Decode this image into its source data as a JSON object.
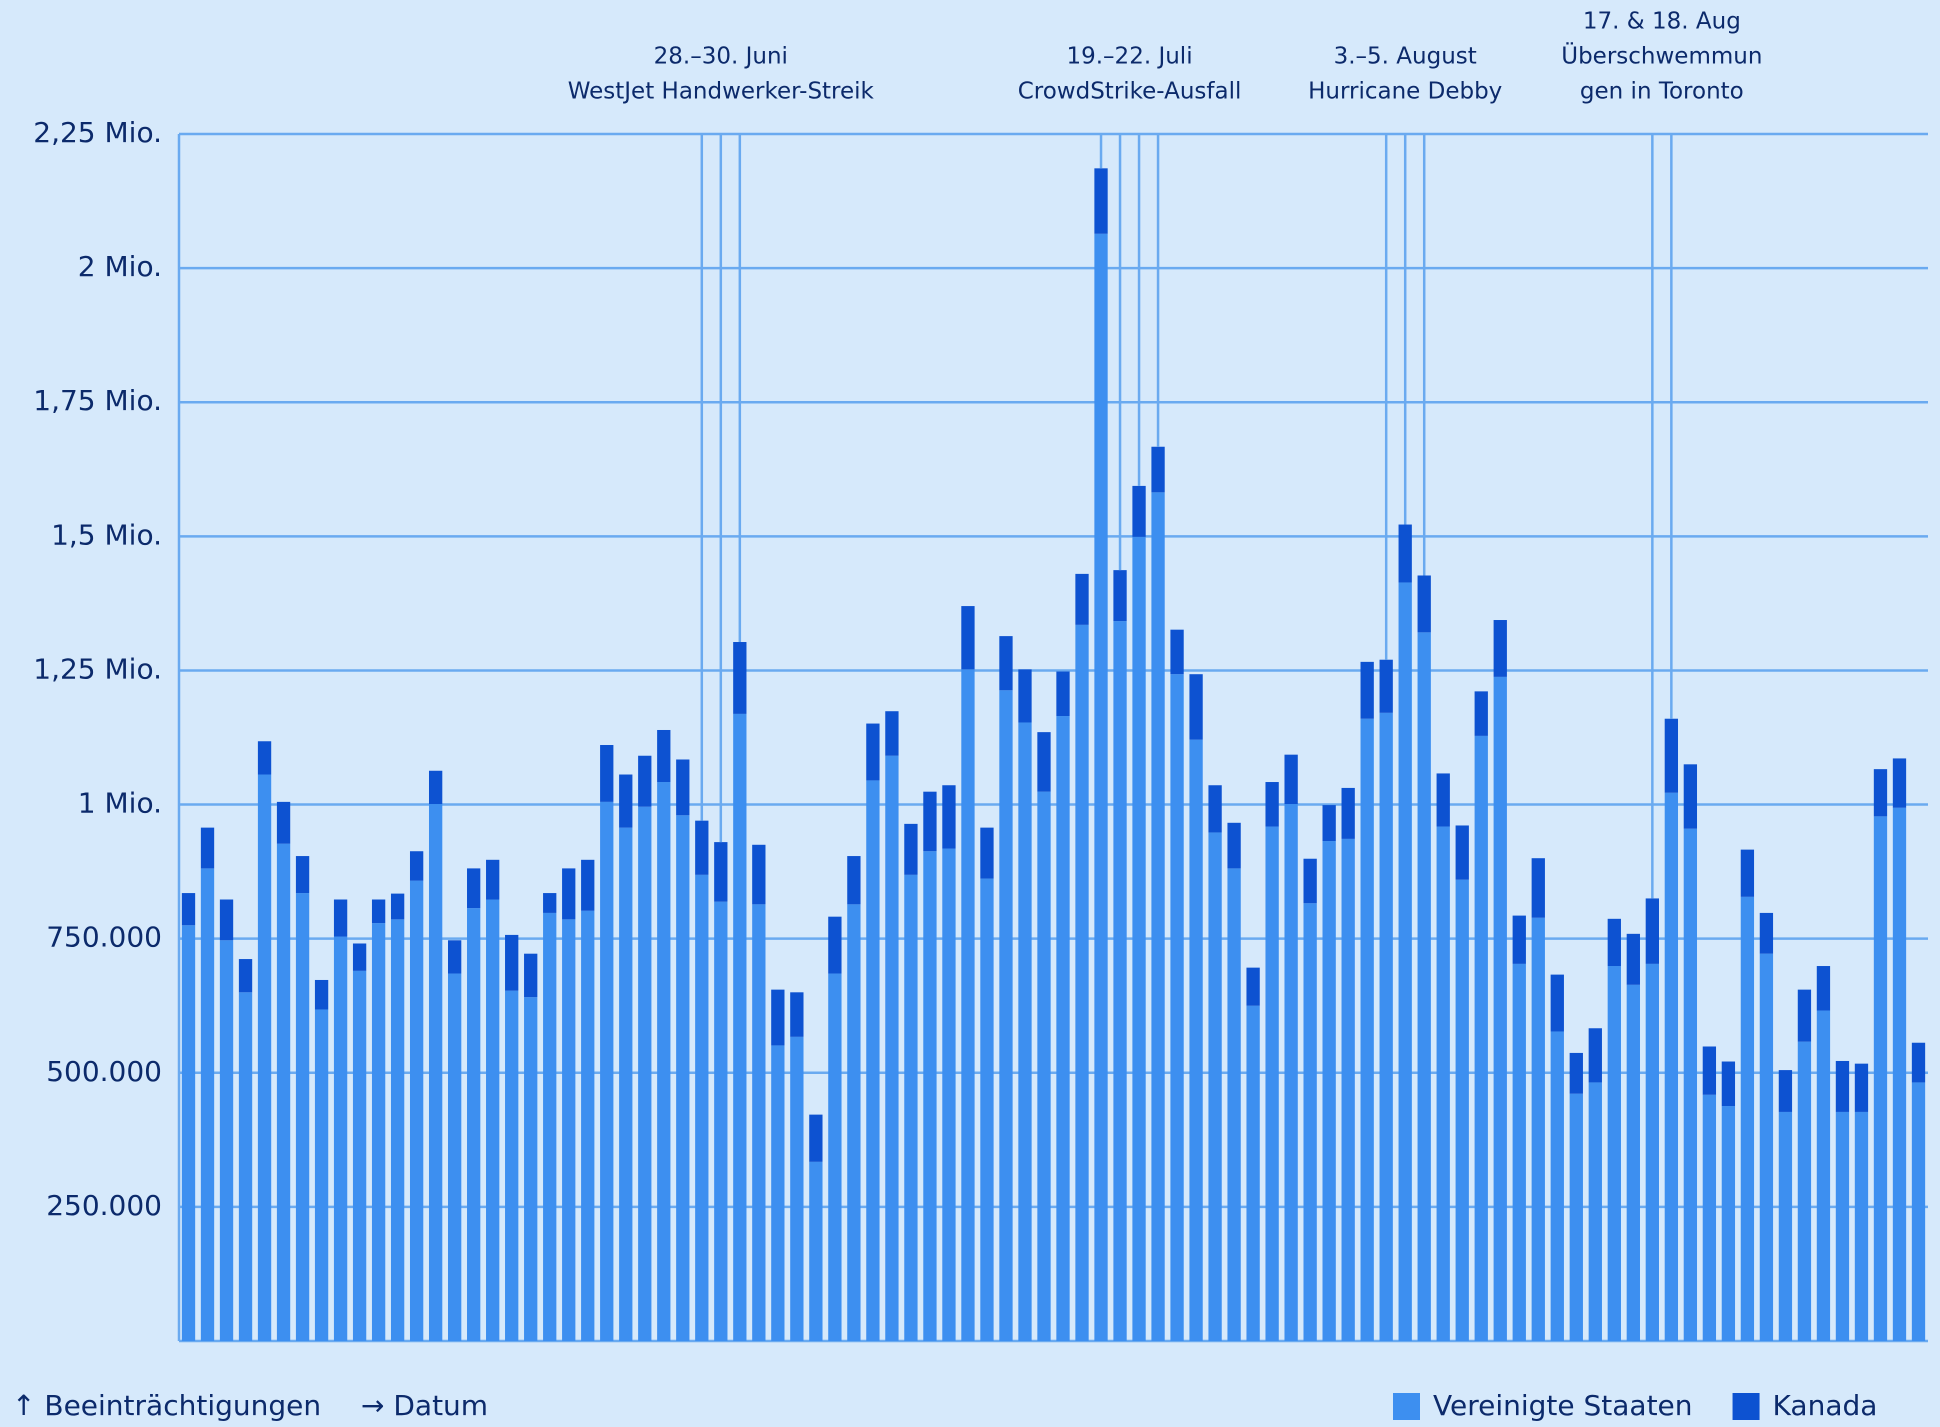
{
  "chart_data": {
    "type": "stacked_bar",
    "x_label": "→ Datum",
    "y_label": "↑ Beeinträchtigungen",
    "annotations": [
      {
        "lines": [
          "28.–30. Juni",
          "WestJet Handwerker-Streik"
        ]
      },
      {
        "lines": [
          "19.–22. Juli",
          "CrowdStrike-Ausfall"
        ]
      },
      {
        "lines": [
          "3.–5. August",
          "Hurricane Debby"
        ]
      },
      {
        "lines": [
          "17. & 18. Aug",
          "Überschwemmun",
          "gen in Toronto"
        ]
      }
    ],
    "categories": [
      null,
      null,
      null,
      null,
      null,
      null,
      null,
      null,
      null,
      null,
      null,
      null,
      null,
      null,
      null,
      null,
      null,
      null,
      null,
      null,
      null,
      null,
      null,
      null,
      null,
      null,
      null,
      null,
      null,
      null,
      null,
      null,
      null,
      null,
      null,
      null,
      null,
      null,
      null,
      null,
      null,
      null,
      null,
      null,
      null,
      null,
      null,
      null,
      null,
      null,
      null,
      null,
      null,
      null,
      null,
      null,
      null,
      null,
      null,
      null,
      null,
      null,
      null,
      null,
      null,
      null,
      null,
      null,
      null,
      null,
      null,
      null,
      null,
      null,
      null,
      null,
      null,
      null,
      null,
      null,
      null,
      null,
      null,
      null,
      null,
      null,
      null,
      null,
      null,
      null,
      null,
      null
    ],
    "series": [
      {
        "name": "Vereinigte Staaten",
        "color": "#3d8ff0",
        "values": [
          775000,
          881000,
          747000,
          650000,
          1056000,
          927000,
          835000,
          618000,
          754000,
          690000,
          779000,
          786000,
          858000,
          1001000,
          685000,
          807000,
          823000,
          653000,
          641000,
          798000,
          786000,
          802000,
          1005000,
          957000,
          996000,
          1042000,
          980000,
          869000,
          819000,
          1169000,
          814000,
          551000,
          567000,
          334000,
          685000,
          814000,
          1045000,
          1091000,
          869000,
          913000,
          918000,
          1252000,
          862000,
          1213000,
          1153000,
          1024000,
          1165000,
          1335000,
          2064000,
          1342000,
          1499000,
          1582000,
          1243000,
          1121000,
          948000,
          881000,
          625000,
          959000,
          1001000,
          816000,
          932000,
          936000,
          1160000,
          1171000,
          1414000,
          1321000,
          959000,
          860000,
          1128000,
          1238000,
          703000,
          789000,
          577000,
          461000,
          482000,
          699000,
          664000,
          703000,
          1022000,
          955000,
          459000,
          438000,
          828000,
          722000,
          427000,
          558000,
          616000,
          427000,
          427000,
          978000,
          994000,
          482000
        ]
      },
      {
        "name": "Kanada",
        "color": "#0d52d1",
        "values": [
          60000,
          76000,
          76000,
          62000,
          62000,
          78000,
          69000,
          55000,
          69000,
          51000,
          44000,
          48000,
          55000,
          62000,
          62000,
          74000,
          74000,
          104000,
          81000,
          37000,
          95000,
          95000,
          106000,
          99000,
          95000,
          97000,
          104000,
          101000,
          111000,
          134000,
          111000,
          104000,
          83000,
          88000,
          106000,
          90000,
          106000,
          83000,
          95000,
          111000,
          118000,
          118000,
          95000,
          101000,
          99000,
          111000,
          83000,
          95000,
          122000,
          95000,
          95000,
          85000,
          83000,
          122000,
          88000,
          85000,
          71000,
          83000,
          92000,
          83000,
          67000,
          95000,
          106000,
          99000,
          108000,
          106000,
          99000,
          101000,
          83000,
          106000,
          90000,
          111000,
          106000,
          76000,
          101000,
          88000,
          95000,
          122000,
          138000,
          120000,
          90000,
          83000,
          88000,
          76000,
          78000,
          97000,
          83000,
          95000,
          90000,
          88000,
          92000,
          74000
        ]
      }
    ],
    "ylim": [
      0,
      2250000
    ],
    "yticks": [
      {
        "value": 250000,
        "label": "250.000"
      },
      {
        "value": 500000,
        "label": "500.000"
      },
      {
        "value": 750000,
        "label": "750.000"
      },
      {
        "value": 1000000,
        "label": "1 Mio."
      },
      {
        "value": 1250000,
        "label": "1,25 Mio."
      },
      {
        "value": 1500000,
        "label": "1,5 Mio."
      },
      {
        "value": 1750000,
        "label": "1,75 Mio."
      },
      {
        "value": 2000000,
        "label": "2 Mio."
      },
      {
        "value": 2250000,
        "label": "2,25 Mio."
      }
    ],
    "grid": true,
    "legend": "bottom-right"
  }
}
